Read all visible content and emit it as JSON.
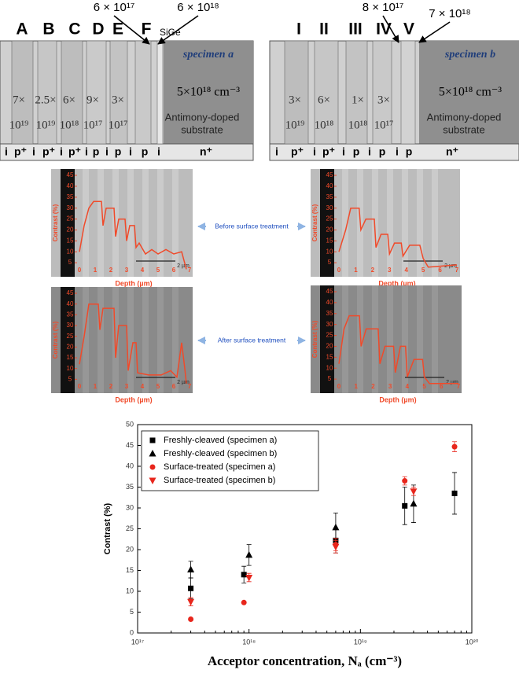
{
  "specimen_a": {
    "title": "specimen a",
    "letters": [
      "A",
      "B",
      "C",
      "D",
      "E",
      "F"
    ],
    "dopings": [
      [
        "7×",
        "10¹⁹"
      ],
      [
        "2.5×",
        "10¹⁹"
      ],
      [
        "6×",
        "10¹⁸"
      ],
      [
        "9×",
        "10¹⁷"
      ],
      [
        "3×",
        "10¹⁷"
      ]
    ],
    "arrows": [
      "6 × 10¹⁷",
      "6 × 10¹⁸",
      "SiGe"
    ],
    "types": [
      "i",
      "p⁺",
      "i",
      "p⁺",
      "i",
      "p⁺",
      "i",
      "p",
      "i",
      "p",
      "i",
      "p",
      "i",
      "n⁺"
    ],
    "substrate_doping": "5×10¹⁸ cm⁻³",
    "substrate": [
      "Antimony-doped",
      "substrate"
    ]
  },
  "specimen_b": {
    "title": "specimen b",
    "letters": [
      "I",
      "II",
      "III",
      "IV",
      "V"
    ],
    "dopings": [
      [
        "3×",
        "10¹⁹"
      ],
      [
        "6×",
        "10¹⁸"
      ],
      [
        "1×",
        "10¹⁸"
      ],
      [
        "3×",
        "10¹⁷"
      ]
    ],
    "arrows": [
      "8 × 10¹⁷",
      "7 × 10¹⁸"
    ],
    "types": [
      "i",
      "p⁺",
      "i",
      "p⁺",
      "i",
      "p",
      "i",
      "p",
      "i",
      "p",
      "n⁺"
    ],
    "substrate_doping": "5×10¹⁸  cm⁻³",
    "substrate": [
      "Antimony-doped",
      "substrate"
    ]
  },
  "panel_labels": [
    "Before surface treatment",
    "After surface treatment"
  ],
  "panel_axes": {
    "ylabel": "Contrast (%)",
    "xlabel": "Depth (µm)",
    "scale_bar": "2 µm",
    "color": "#f04a2a",
    "xlim": [
      0,
      7
    ],
    "ylim": [
      0,
      45
    ],
    "xticks": [
      0,
      1,
      2,
      3,
      4,
      5,
      6,
      7
    ],
    "yticks": [
      5,
      10,
      15,
      20,
      25,
      30,
      35,
      40,
      45
    ]
  },
  "panels": [
    {
      "x": [
        0,
        0.3,
        0.6,
        0.9,
        1.4,
        1.5,
        1.7,
        2.2,
        2.3,
        2.5,
        2.9,
        3.0,
        3.2,
        3.5,
        3.6,
        3.8,
        4.2,
        4.6,
        5.0,
        5.5,
        6.0,
        6.5,
        6.8
      ],
      "y": [
        10,
        22,
        30,
        33,
        33,
        22,
        30,
        30,
        17,
        25,
        25,
        15,
        22,
        22,
        12,
        14,
        9,
        11,
        9,
        11,
        9,
        10,
        2
      ]
    },
    {
      "x": [
        0,
        0.4,
        0.7,
        1.2,
        1.3,
        1.6,
        2.1,
        2.2,
        2.5,
        2.9,
        3.0,
        3.3,
        3.7,
        3.8,
        4.2,
        4.8,
        5.0,
        5.3,
        7
      ],
      "y": [
        10,
        20,
        30,
        30,
        20,
        25,
        25,
        12,
        18,
        18,
        9,
        14,
        14,
        8,
        13,
        13,
        7,
        3,
        4
      ]
    },
    {
      "x": [
        0,
        0.3,
        0.6,
        1.2,
        1.3,
        1.5,
        2.2,
        2.3,
        2.5,
        3.0,
        3.1,
        3.4,
        3.6,
        3.7,
        4.4,
        5.2,
        5.8,
        6.2,
        6.5,
        6.7,
        6.8
      ],
      "y": [
        12,
        25,
        40,
        40,
        28,
        38,
        38,
        15,
        30,
        30,
        9,
        22,
        22,
        8,
        7,
        7,
        9,
        6,
        22,
        10,
        3
      ]
    },
    {
      "x": [
        0,
        0.3,
        0.6,
        1.2,
        1.3,
        1.6,
        2.3,
        2.4,
        2.7,
        3.2,
        3.3,
        3.6,
        3.9,
        4.0,
        4.4,
        4.9,
        5.0,
        5.3,
        7
      ],
      "y": [
        12,
        28,
        34,
        34,
        20,
        28,
        28,
        12,
        20,
        20,
        8,
        20,
        20,
        6,
        14,
        14,
        6,
        3,
        3
      ]
    }
  ],
  "chart_data": {
    "type": "scatter",
    "xlabel": "Acceptor concentration, Nₐ (cm⁻³)",
    "ylabel": "Contrast (%)",
    "log_x": true,
    "xlim": [
      1e+17,
      1e+20
    ],
    "xticks": [
      {
        "value": 1e+17,
        "label": "10¹⁷"
      },
      {
        "value": 1e+18,
        "label": "10¹⁸"
      },
      {
        "value": 1e+19,
        "label": "10¹⁹"
      },
      {
        "value": 1e+20,
        "label": "10²⁰"
      }
    ],
    "ylim": [
      0,
      50
    ],
    "yticks": [
      0,
      5,
      10,
      15,
      20,
      25,
      30,
      35,
      40,
      45,
      50
    ],
    "legend": "top-left",
    "series": [
      {
        "name": "Freshly-cleaved (specimen a)",
        "color": "#000000",
        "marker": "square",
        "x": [
          3e+17,
          9e+17,
          6e+18,
          2.5e+19,
          7e+19
        ],
        "values": [
          10.7,
          14,
          22.2,
          30.5,
          33.5
        ],
        "errors": [
          2.5,
          2,
          3,
          4.5,
          5
        ]
      },
      {
        "name": "Freshly-cleaved (specimen b)",
        "color": "#000000",
        "marker": "triangle",
        "x": [
          3e+17,
          1e+18,
          6e+18,
          3e+19
        ],
        "values": [
          15.2,
          18.7,
          25.3,
          31
        ],
        "errors": [
          2,
          2.5,
          3.5,
          4.5
        ]
      },
      {
        "name": "Surface-treated (specimen a)",
        "color": "#e8261c",
        "marker": "circle",
        "x": [
          3e+17,
          9e+17,
          6e+18,
          2.5e+19,
          7e+19
        ],
        "values": [
          3.3,
          7.3,
          21.2,
          36.5,
          44.7
        ],
        "errors": [
          null,
          null,
          1.5,
          1,
          1.2
        ]
      },
      {
        "name": "Surface-treated (specimen b)",
        "color": "#e8261c",
        "marker": "triangle-down",
        "x": [
          3e+17,
          1e+18,
          6e+18,
          3e+19
        ],
        "values": [
          7.5,
          13.3,
          20.7,
          34
        ],
        "errors": [
          1,
          1,
          1.5,
          1
        ]
      }
    ]
  }
}
